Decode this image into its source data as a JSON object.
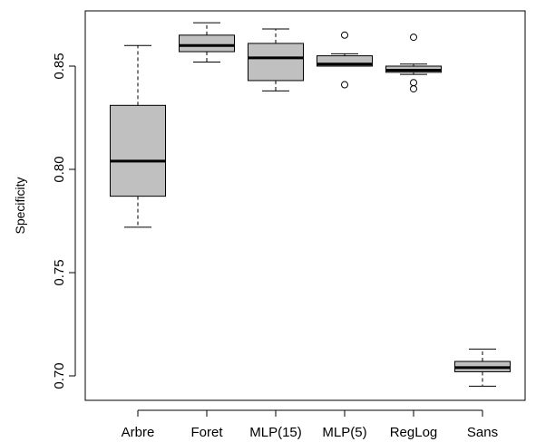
{
  "chart_data": {
    "type": "boxplot",
    "title": "",
    "xlabel": "",
    "ylabel": "Specificity",
    "ylim": [
      0.688,
      0.876
    ],
    "yticks": [
      0.7,
      0.75,
      0.8,
      0.85
    ],
    "ytick_labels": [
      "0.70",
      "0.75",
      "0.80",
      "0.85"
    ],
    "grid": false,
    "box_fill": "#c0c0c0",
    "categories": [
      "Arbre",
      "Foret",
      "MLP(15)",
      "MLP(5)",
      "RegLog",
      "Sans"
    ],
    "boxes": [
      {
        "name": "Arbre",
        "whisker_low": 0.772,
        "q1": 0.787,
        "median": 0.804,
        "q3": 0.831,
        "whisker_high": 0.86,
        "outliers": []
      },
      {
        "name": "Foret",
        "whisker_low": 0.852,
        "q1": 0.857,
        "median": 0.86,
        "q3": 0.865,
        "whisker_high": 0.871,
        "outliers": []
      },
      {
        "name": "MLP(15)",
        "whisker_low": 0.838,
        "q1": 0.843,
        "median": 0.854,
        "q3": 0.861,
        "whisker_high": 0.868,
        "outliers": []
      },
      {
        "name": "MLP(5)",
        "whisker_low": 0.85,
        "q1": 0.85,
        "median": 0.851,
        "q3": 0.855,
        "whisker_high": 0.856,
        "outliers": [
          0.865,
          0.841
        ]
      },
      {
        "name": "RegLog",
        "whisker_low": 0.846,
        "q1": 0.847,
        "median": 0.848,
        "q3": 0.85,
        "whisker_high": 0.851,
        "outliers": [
          0.864,
          0.842,
          0.839
        ]
      },
      {
        "name": "Sans",
        "whisker_low": 0.695,
        "q1": 0.702,
        "median": 0.704,
        "q3": 0.707,
        "whisker_high": 0.713,
        "outliers": []
      }
    ]
  }
}
